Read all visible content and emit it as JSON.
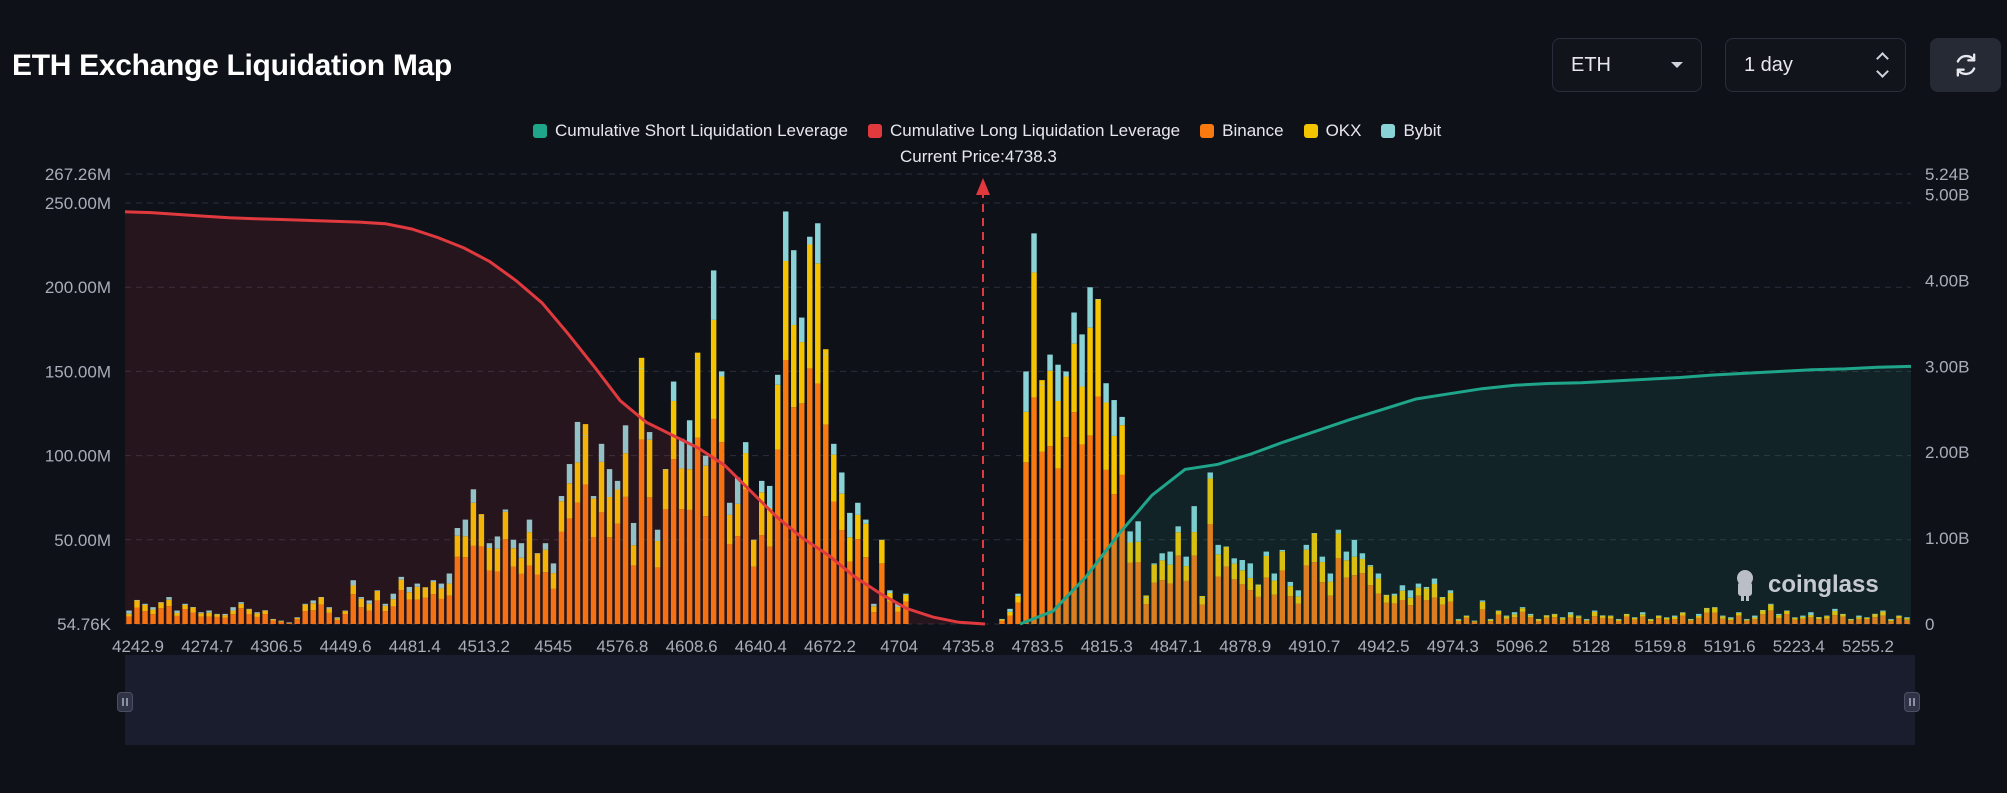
{
  "header": {
    "title": "ETH Exchange Liquidation Map",
    "asset_select": "ETH",
    "period_select": "1 day",
    "refresh_icon": "refresh-icon"
  },
  "legend": {
    "short": "Cumulative Short Liquidation Leverage",
    "long": "Cumulative Long Liquidation Leverage",
    "binance": "Binance",
    "okx": "OKX",
    "bybit": "Bybit"
  },
  "current_price_label": "Current Price:4738.3",
  "brand": "coinglass",
  "colors": {
    "short": "#1fa58a",
    "long": "#e0393e",
    "binance": "#f7790f",
    "okx": "#f5c400",
    "bybit": "#89d3d6",
    "background": "#0f1119"
  },
  "chart_data": {
    "type": "bar",
    "current_price": 4738.3,
    "y_left_ticks": [
      "267.26M",
      "250.00M",
      "200.00M",
      "150.00M",
      "100.00M",
      "50.00M",
      "54.76K"
    ],
    "y_right_ticks": [
      "5.24B",
      "5.00B",
      "4.00B",
      "3.00B",
      "2.00B",
      "1.00B",
      "0"
    ],
    "y_left_range": [
      0,
      267.26
    ],
    "y_right_range": [
      0,
      5.24
    ],
    "x_ticks": [
      "4242.9",
      "4274.7",
      "4306.5",
      "4449.6",
      "4481.4",
      "4513.2",
      "4545",
      "4576.8",
      "4608.6",
      "4640.4",
      "4672.2",
      "4704",
      "4735.8",
      "4783.5",
      "4815.3",
      "4847.1",
      "4878.9",
      "4910.7",
      "4942.5",
      "4974.3",
      "5096.2",
      "5128",
      "5159.8",
      "5191.6",
      "5223.4",
      "5255.2"
    ],
    "stack_totals_M": [
      8,
      14,
      12,
      10,
      13,
      16,
      8,
      12,
      10,
      7,
      8,
      6,
      6,
      10,
      13,
      9,
      7,
      8,
      3,
      2,
      1,
      4,
      12,
      14,
      16,
      10,
      4,
      8,
      26,
      16,
      14,
      20,
      12,
      18,
      28,
      22,
      24,
      21,
      26,
      24,
      30,
      57,
      62,
      80,
      64,
      48,
      52,
      68,
      50,
      48,
      62,
      42,
      48,
      36,
      76,
      95,
      120,
      112,
      76,
      107,
      92,
      85,
      118,
      60,
      152,
      114,
      56,
      92,
      144,
      110,
      121,
      158,
      100,
      210,
      150,
      72,
      87,
      108,
      50,
      85,
      82,
      148,
      245,
      222,
      182,
      230,
      238,
      160,
      107,
      90,
      66,
      72,
      62,
      12,
      50,
      20,
      12,
      18,
      0,
      0,
      0,
      0,
      0,
      0,
      0,
      0,
      0,
      0,
      0,
      3,
      9,
      18,
      150,
      232,
      142,
      160,
      154,
      150,
      185,
      172,
      200,
      193,
      143,
      133,
      123,
      55,
      61,
      16,
      36,
      42,
      43,
      58,
      40,
      70,
      16,
      90,
      47,
      46,
      39,
      38,
      36,
      23,
      43,
      30,
      44,
      25,
      20,
      47,
      54,
      40,
      30,
      56,
      43,
      50,
      42,
      35,
      30,
      17,
      18,
      23,
      20,
      24,
      22,
      27,
      16,
      20,
      3,
      5,
      2,
      14,
      3,
      8,
      5,
      7,
      10,
      6,
      3,
      5,
      6,
      4,
      7,
      5,
      3,
      8,
      5,
      5,
      3,
      6,
      4,
      7,
      3,
      5,
      4,
      5,
      7,
      3,
      6,
      9,
      10,
      5,
      4,
      7,
      3,
      5,
      8,
      12,
      6,
      8,
      4,
      5,
      7,
      4,
      5,
      9,
      6,
      3,
      5,
      4,
      6,
      8,
      3,
      5,
      4
    ],
    "long_cumulative_B": [
      4.8,
      4.79,
      4.77,
      4.75,
      4.73,
      4.72,
      4.71,
      4.7,
      4.69,
      4.68,
      4.66,
      4.6,
      4.5,
      4.38,
      4.22,
      4.0,
      3.74,
      3.38,
      3.0,
      2.6,
      2.35,
      2.2,
      2.05,
      1.85,
      1.55,
      1.25,
      1.0,
      0.8,
      0.55,
      0.35,
      0.18,
      0.08,
      0.02,
      0
    ],
    "short_cumulative_B": [
      0,
      0.15,
      0.55,
      1.05,
      1.5,
      1.8,
      1.86,
      1.98,
      2.12,
      2.25,
      2.38,
      2.5,
      2.62,
      2.68,
      2.74,
      2.78,
      2.8,
      2.81,
      2.83,
      2.85,
      2.87,
      2.9,
      2.92,
      2.94,
      2.96,
      2.97,
      2.99,
      3.0
    ]
  }
}
